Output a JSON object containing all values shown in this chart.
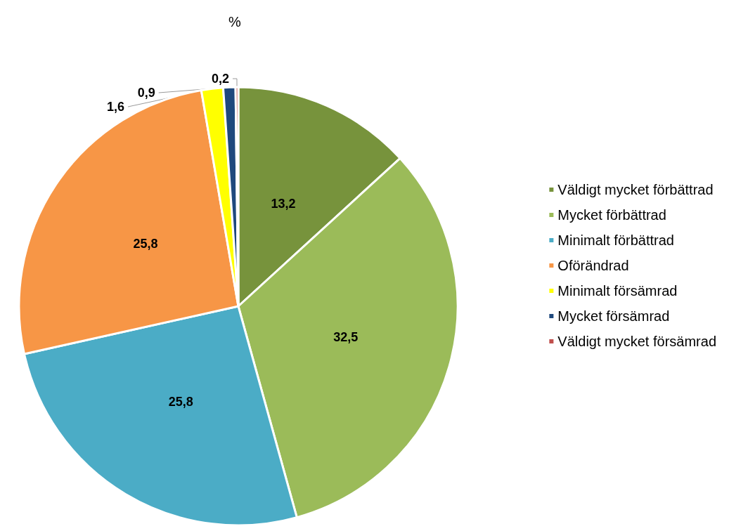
{
  "chart_data": {
    "type": "pie",
    "title": "%",
    "categories": [
      "Väldigt mycket förbättrad",
      "Mycket förbättrad",
      "Minimalt förbättrad",
      "Oförändrad",
      "Minimalt försämrad",
      "Mycket försämrad",
      "Väldigt mycket försämrad"
    ],
    "values": [
      13.2,
      32.5,
      25.8,
      25.8,
      1.6,
      0.9,
      0.2
    ],
    "value_labels": [
      "13,2",
      "32,5",
      "25,8",
      "25,8",
      "1,6",
      "0,9",
      "0,2"
    ],
    "colors": [
      "#77933c",
      "#9bbb59",
      "#4bacc6",
      "#f79646",
      "#ffff00",
      "#1f497d",
      "#c0504d"
    ],
    "legend": "right"
  }
}
